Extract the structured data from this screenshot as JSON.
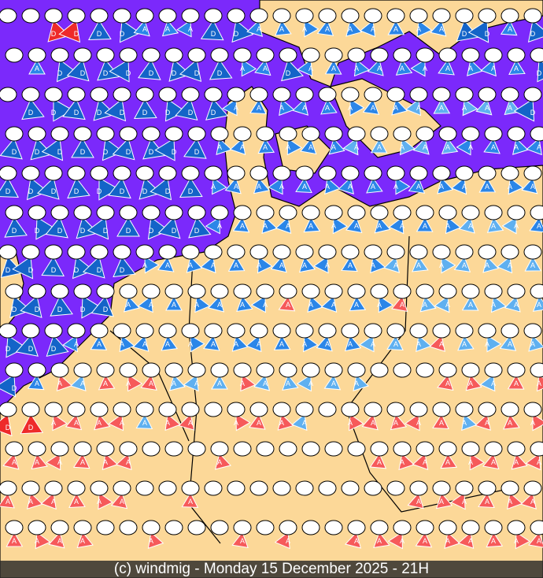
{
  "caption": "(c) windmig - Monday 15 December 2025 - 21H",
  "colors": {
    "sea": "#7b29fb",
    "land": "#fcd898",
    "border": "#000000",
    "R": "#ee2a2a",
    "r": "#f65a5a",
    "B": "#1464c8",
    "b": "#2b86e8",
    "l": "#5fb0f0"
  },
  "symbol_letters": {
    "R": "D",
    "r": "A",
    "B": "D",
    "b": "A",
    "l": "A",
    "w": ""
  },
  "wind_rows": [
    "wwRRBBbbbBBbbbbbbbbbBBbB",
    "wbBBBBBBBBbbBbbbbbbbbbbB",
    "wBBBBBBBBBbbbbbbbblllllB",
    "BBBBBBBBBbbbbbblllllbbbb",
    "BBBBBBBBBbbbbbbbbbbbbbbb",
    "BBBBBBBBBbbbbbbbbbbblllb",
    "BBBBBBbbbbbbbbbbblllllll",
    "BBBBBbbbbbbbrbbbbrllllll",
    "BBBbbbbbbbbbbbbblllrllll",
    "Bbrlrrrlllrlllllwwwrrlrr",
    "RRrrrrlrrwrrrlwrrrrrlrrr",
    "rrrrrrwwwrwwwwwwrrrrrrrr",
    "rrrrrrwwrwwwwwwwwwrrrrrr",
    "rrrrwwrwwwrwrwwrrrrrrrrr"
  ]
}
